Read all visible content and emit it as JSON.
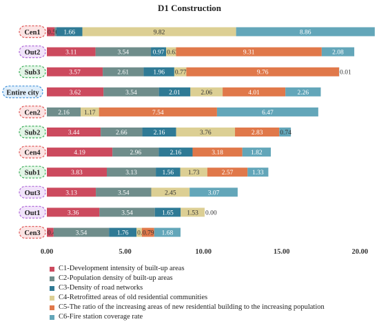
{
  "chart_data": {
    "type": "bar",
    "stacked": true,
    "orientation": "horizontal",
    "title": "D1 Construction",
    "xlim": [
      0,
      21
    ],
    "x_ticks": [
      "0.00",
      "5.00",
      "10.00",
      "15.00",
      "20.00"
    ],
    "grid": false,
    "legend_position": "bottom",
    "categories": [
      {
        "label": "Cen1",
        "group": "center"
      },
      {
        "label": "Out2",
        "group": "outer"
      },
      {
        "label": "Sub3",
        "group": "suburb"
      },
      {
        "label": "Entire city",
        "group": "city"
      },
      {
        "label": "Cen2",
        "group": "center"
      },
      {
        "label": "Sub2",
        "group": "suburb"
      },
      {
        "label": "Cen4",
        "group": "center"
      },
      {
        "label": "Sub1",
        "group": "suburb"
      },
      {
        "label": "Out3",
        "group": "outer"
      },
      {
        "label": "Out1",
        "group": "outer"
      },
      {
        "label": "Cen3",
        "group": "center"
      }
    ],
    "series": [
      {
        "name": "C1-Development intensity of built-up areas",
        "color": "#cc4a5e",
        "values": [
          0.5,
          3.11,
          3.57,
          3.62,
          0.0,
          3.44,
          4.19,
          3.83,
          3.13,
          3.36,
          0.43
        ],
        "labels": [
          "0.50",
          "3.11",
          "3.57",
          "3.62",
          "",
          "3.44",
          "4.19",
          "3.83",
          "3.13",
          "3.36",
          "0.43"
        ]
      },
      {
        "name": "C2-Population density of built-up areas",
        "color": "#6f8d8b",
        "values": [
          0.11,
          3.54,
          2.61,
          3.54,
          2.16,
          2.66,
          2.96,
          3.13,
          3.54,
          3.54,
          3.54
        ],
        "labels": [
          "0.11",
          "3.54",
          "2.61",
          "3.54",
          "2.16",
          "2.66",
          "2.96",
          "3.13",
          "3.54",
          "3.54",
          "3.54"
        ]
      },
      {
        "name": "C3-Density of road networks",
        "color": "#2f7a95",
        "values": [
          1.66,
          0.97,
          1.96,
          2.01,
          0.0,
          2.16,
          2.16,
          1.56,
          0.0,
          1.65,
          1.76
        ],
        "labels": [
          "1.66",
          "0.97",
          "1.96",
          "2.01",
          "",
          "2.16",
          "2.16",
          "1.56",
          "0.00",
          "1.65",
          "1.76"
        ]
      },
      {
        "name": "C4-Retrofitted areas of old residential communities",
        "color": "#dccf94",
        "values": [
          9.82,
          0.63,
          0.77,
          2.06,
          1.17,
          3.76,
          0.0,
          1.73,
          2.45,
          1.53,
          0.34
        ],
        "labels": [
          "9.82",
          "0.63",
          "0.77",
          "2.06",
          "1.17",
          "3.76",
          "0.00",
          "1.73",
          "2.45",
          "1.53",
          "0.34"
        ]
      },
      {
        "name": "C5-The ratio of the increasing areas of new residential building to the increasing population",
        "color": "#e0784a",
        "values": [
          0.0,
          9.31,
          9.76,
          4.01,
          7.54,
          2.83,
          3.18,
          2.57,
          0.0,
          0.0,
          0.79
        ],
        "labels": [
          "0.00",
          "9.31",
          "9.76",
          "4.01",
          "7.54",
          "2.83",
          "3.18",
          "2.57",
          "0.00",
          "0.00",
          "0.79"
        ]
      },
      {
        "name": "C6-Fire station coverage rate",
        "color": "#63a6b9",
        "values": [
          8.86,
          2.08,
          0.01,
          2.26,
          6.47,
          0.74,
          1.82,
          1.33,
          3.07,
          0.0,
          1.68
        ],
        "labels": [
          "8.86",
          "2.08",
          "0.01",
          "2.26",
          "6.47",
          "0.74",
          "1.82",
          "1.33",
          "3.07",
          "",
          "1.68"
        ]
      }
    ]
  },
  "group_colors": {
    "center": {
      "border": "#e05a5a",
      "fill": "#fbe3e3"
    },
    "outer": {
      "border": "#b06ad8",
      "fill": "#f1e3fa"
    },
    "suburb": {
      "border": "#3fae5b",
      "fill": "#e2f5e6"
    },
    "city": {
      "border": "#3c8ed8",
      "fill": "#dfeefb"
    }
  }
}
